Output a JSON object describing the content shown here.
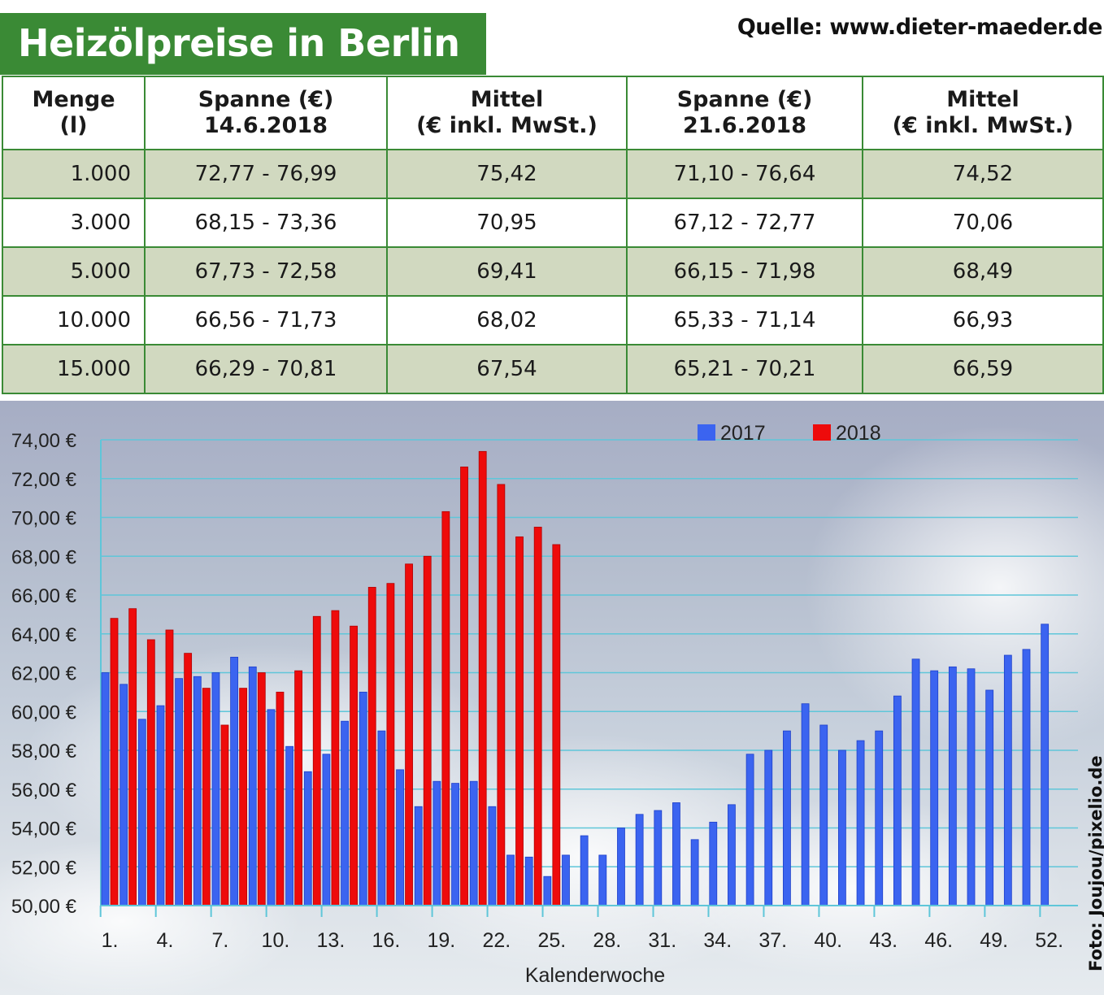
{
  "title": "Heizölpreise in Berlin",
  "source": "Quelle: www.dieter-maeder.de",
  "photo_credit": "Foto: Joujou/pixelio.de",
  "table": {
    "headers": [
      [
        "Menge",
        "(l)"
      ],
      [
        "Spanne (€)",
        "14.6.2018"
      ],
      [
        "Mittel",
        "(€ inkl. MwSt.)"
      ],
      [
        "Spanne (€)",
        "21.6.2018"
      ],
      [
        "Mittel",
        "(€ inkl. MwSt.)"
      ]
    ],
    "rows": [
      [
        "1.000",
        "72,77 - 76,99",
        "75,42",
        "71,10 - 76,64",
        "74,52"
      ],
      [
        "3.000",
        "68,15 - 73,36",
        "70,95",
        "67,12 - 72,77",
        "70,06"
      ],
      [
        "5.000",
        "67,73 - 72,58",
        "69,41",
        "66,15 - 71,98",
        "68,49"
      ],
      [
        "10.000",
        "66,56 - 71,73",
        "68,02",
        "65,33 - 71,14",
        "66,93"
      ],
      [
        "15.000",
        "66,29 - 70,81",
        "67,54",
        "65,21 - 70,21",
        "66,59"
      ]
    ]
  },
  "colors": {
    "green": "#3a8a35",
    "series_2017": "#3b64f0",
    "series_2018": "#ee0b0b"
  },
  "chart_data": {
    "type": "bar",
    "xlabel": "Kalenderwoche",
    "ylim": [
      50,
      74
    ],
    "yticks": [
      50,
      52,
      54,
      56,
      58,
      60,
      62,
      64,
      66,
      68,
      70,
      72,
      74
    ],
    "ytick_labels": [
      "50,00 €",
      "52,00 €",
      "54,00 €",
      "56,00 €",
      "58,00 €",
      "60,00 €",
      "62,00 €",
      "64,00 €",
      "66,00 €",
      "68,00 €",
      "70,00 €",
      "72,00 €",
      "74,00 €"
    ],
    "xtick_labels": [
      "1.",
      "4.",
      "7.",
      "10.",
      "13.",
      "16.",
      "19.",
      "22.",
      "25.",
      "28.",
      "31.",
      "34.",
      "37.",
      "40.",
      "43.",
      "46.",
      "49.",
      "52."
    ],
    "xtick_weeks": [
      1,
      4,
      7,
      10,
      13,
      16,
      19,
      22,
      25,
      28,
      31,
      34,
      37,
      40,
      43,
      46,
      49,
      52
    ],
    "legend_position": "top-right",
    "grid": true,
    "series": [
      {
        "name": "2017",
        "weeks": [
          1,
          2,
          3,
          4,
          5,
          6,
          7,
          8,
          9,
          10,
          11,
          12,
          13,
          14,
          15,
          16,
          17,
          18,
          19,
          20,
          21,
          22,
          23,
          24,
          25,
          26,
          27,
          28,
          29,
          30,
          31,
          32,
          33,
          34,
          35,
          36,
          37,
          38,
          39,
          40,
          41,
          42,
          43,
          44,
          45,
          46,
          47,
          48,
          49,
          50,
          51,
          52
        ],
        "values": [
          62.0,
          61.4,
          59.6,
          60.3,
          61.7,
          61.8,
          62.0,
          62.8,
          62.3,
          60.1,
          58.2,
          56.9,
          57.8,
          59.5,
          61.0,
          59.0,
          57.0,
          55.1,
          56.4,
          56.3,
          56.4,
          55.1,
          52.6,
          52.5,
          51.5,
          52.6,
          53.6,
          52.6,
          54.0,
          54.7,
          54.9,
          55.3,
          53.4,
          54.3,
          55.2,
          57.8,
          58.0,
          59.0,
          60.4,
          59.3,
          58.0,
          58.5,
          59.0,
          60.8,
          62.7,
          62.1,
          62.3,
          62.2,
          61.1,
          62.9,
          63.2,
          64.5
        ]
      },
      {
        "name": "2018",
        "weeks": [
          1,
          2,
          3,
          4,
          5,
          6,
          7,
          8,
          9,
          10,
          11,
          12,
          13,
          14,
          15,
          16,
          17,
          18,
          19,
          20,
          21,
          22,
          23,
          24,
          25
        ],
        "values": [
          64.8,
          65.3,
          63.7,
          64.2,
          63.0,
          61.2,
          59.3,
          61.2,
          62.0,
          61.0,
          62.1,
          64.9,
          65.2,
          64.4,
          66.4,
          66.6,
          67.6,
          68.0,
          70.3,
          72.6,
          73.4,
          71.7,
          69.0,
          69.5,
          68.6
        ]
      }
    ]
  }
}
